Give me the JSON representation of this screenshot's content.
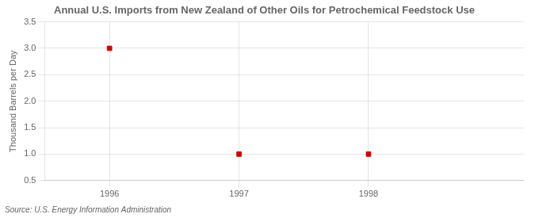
{
  "chart_data": {
    "type": "scatter",
    "title": "Annual U.S. Imports from New Zealand of Other Oils for Petrochemical Feedstock Use",
    "ylabel": "Thousand Barrels per Day",
    "annotations": [
      "Source: U.S. Energy Information Administration"
    ],
    "x": [
      1996,
      1997,
      1998
    ],
    "values": [
      3.0,
      1.0,
      1.0
    ],
    "color": "#CC0000",
    "marker": "square",
    "xlim": [
      1995.5,
      1999.2
    ],
    "xticks": [
      1996,
      1997,
      1998
    ],
    "ylim": [
      0.5,
      3.5
    ],
    "yticks": [
      0.5,
      {
        "value": 1.0,
        "label": "1.0"
      },
      1.5,
      {
        "value": 2.0,
        "label": "2.0"
      },
      2.5,
      {
        "value": 3.0,
        "label": "3.0"
      },
      3.5
    ],
    "grid": true
  }
}
